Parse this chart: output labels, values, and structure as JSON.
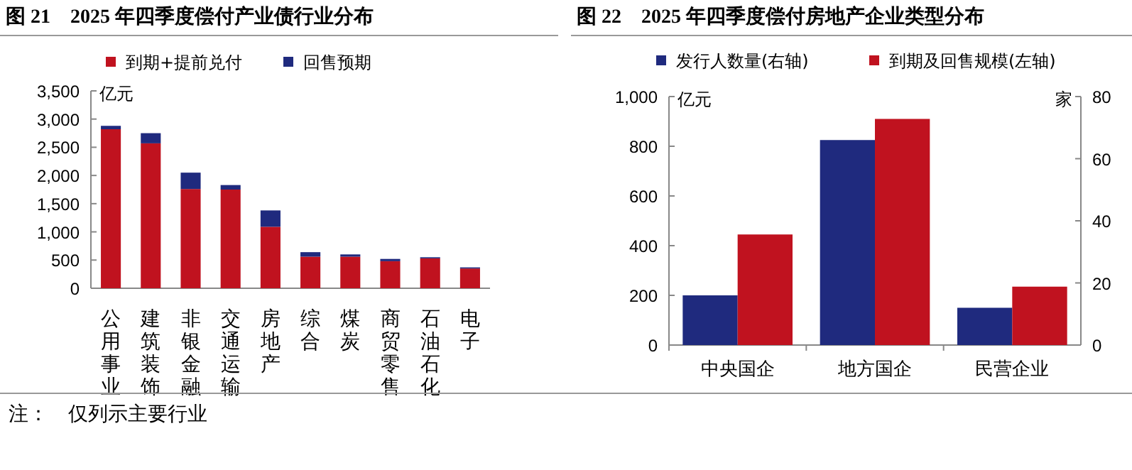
{
  "chart_data": [
    {
      "type": "bar",
      "title": "图 21　2025 年四季度偿付产业债行业分布",
      "ylabel": "亿元",
      "stacked": true,
      "legend": "top",
      "categories": [
        "公用事业",
        "建筑装饰",
        "非银金融",
        "交通运输",
        "房地产",
        "综合",
        "煤炭",
        "商贸零售",
        "石油石化",
        "电子"
      ],
      "series": [
        {
          "name": "到期+提前兑付",
          "color": "#c0121f",
          "values": [
            2820,
            2570,
            1760,
            1750,
            1090,
            560,
            560,
            480,
            530,
            350
          ]
        },
        {
          "name": "回售预期",
          "color": "#1f2a7e",
          "values": [
            60,
            180,
            290,
            80,
            290,
            80,
            40,
            40,
            20,
            20
          ]
        }
      ],
      "ylim": [
        0,
        3500
      ],
      "yticks": [
        0,
        500,
        {
          "value": 1000,
          "label": "1,000"
        },
        {
          "value": 1500,
          "label": "1,500"
        },
        {
          "value": 2000,
          "label": "2,000"
        },
        {
          "value": 2500,
          "label": "2,500"
        },
        {
          "value": 3000,
          "label": "3,000"
        },
        {
          "value": 3500,
          "label": "3,500"
        }
      ],
      "annotations": [
        "注：　仅列示主要行业"
      ]
    },
    {
      "type": "bar",
      "title": "图 22　2025 年四季度偿付房地产企业类型分布",
      "ylabel": "亿元",
      "y2label": "家",
      "legend": "top",
      "categories": [
        "中央国企",
        "地方国企",
        "民营企业"
      ],
      "series": [
        {
          "name": "发行人数量(右轴)",
          "color": "#1f2a7e",
          "axis": "y2",
          "values": [
            16,
            66,
            12
          ]
        },
        {
          "name": "到期及回售规模(左轴)",
          "color": "#c0121f",
          "values": [
            445,
            910,
            235
          ]
        }
      ],
      "ylim": [
        0,
        1000
      ],
      "yticks": [
        0,
        200,
        400,
        600,
        800,
        {
          "value": 1000,
          "label": "1,000"
        }
      ],
      "y2lim": [
        0,
        80
      ],
      "y2ticks": [
        0,
        20,
        40,
        60,
        80
      ]
    }
  ]
}
